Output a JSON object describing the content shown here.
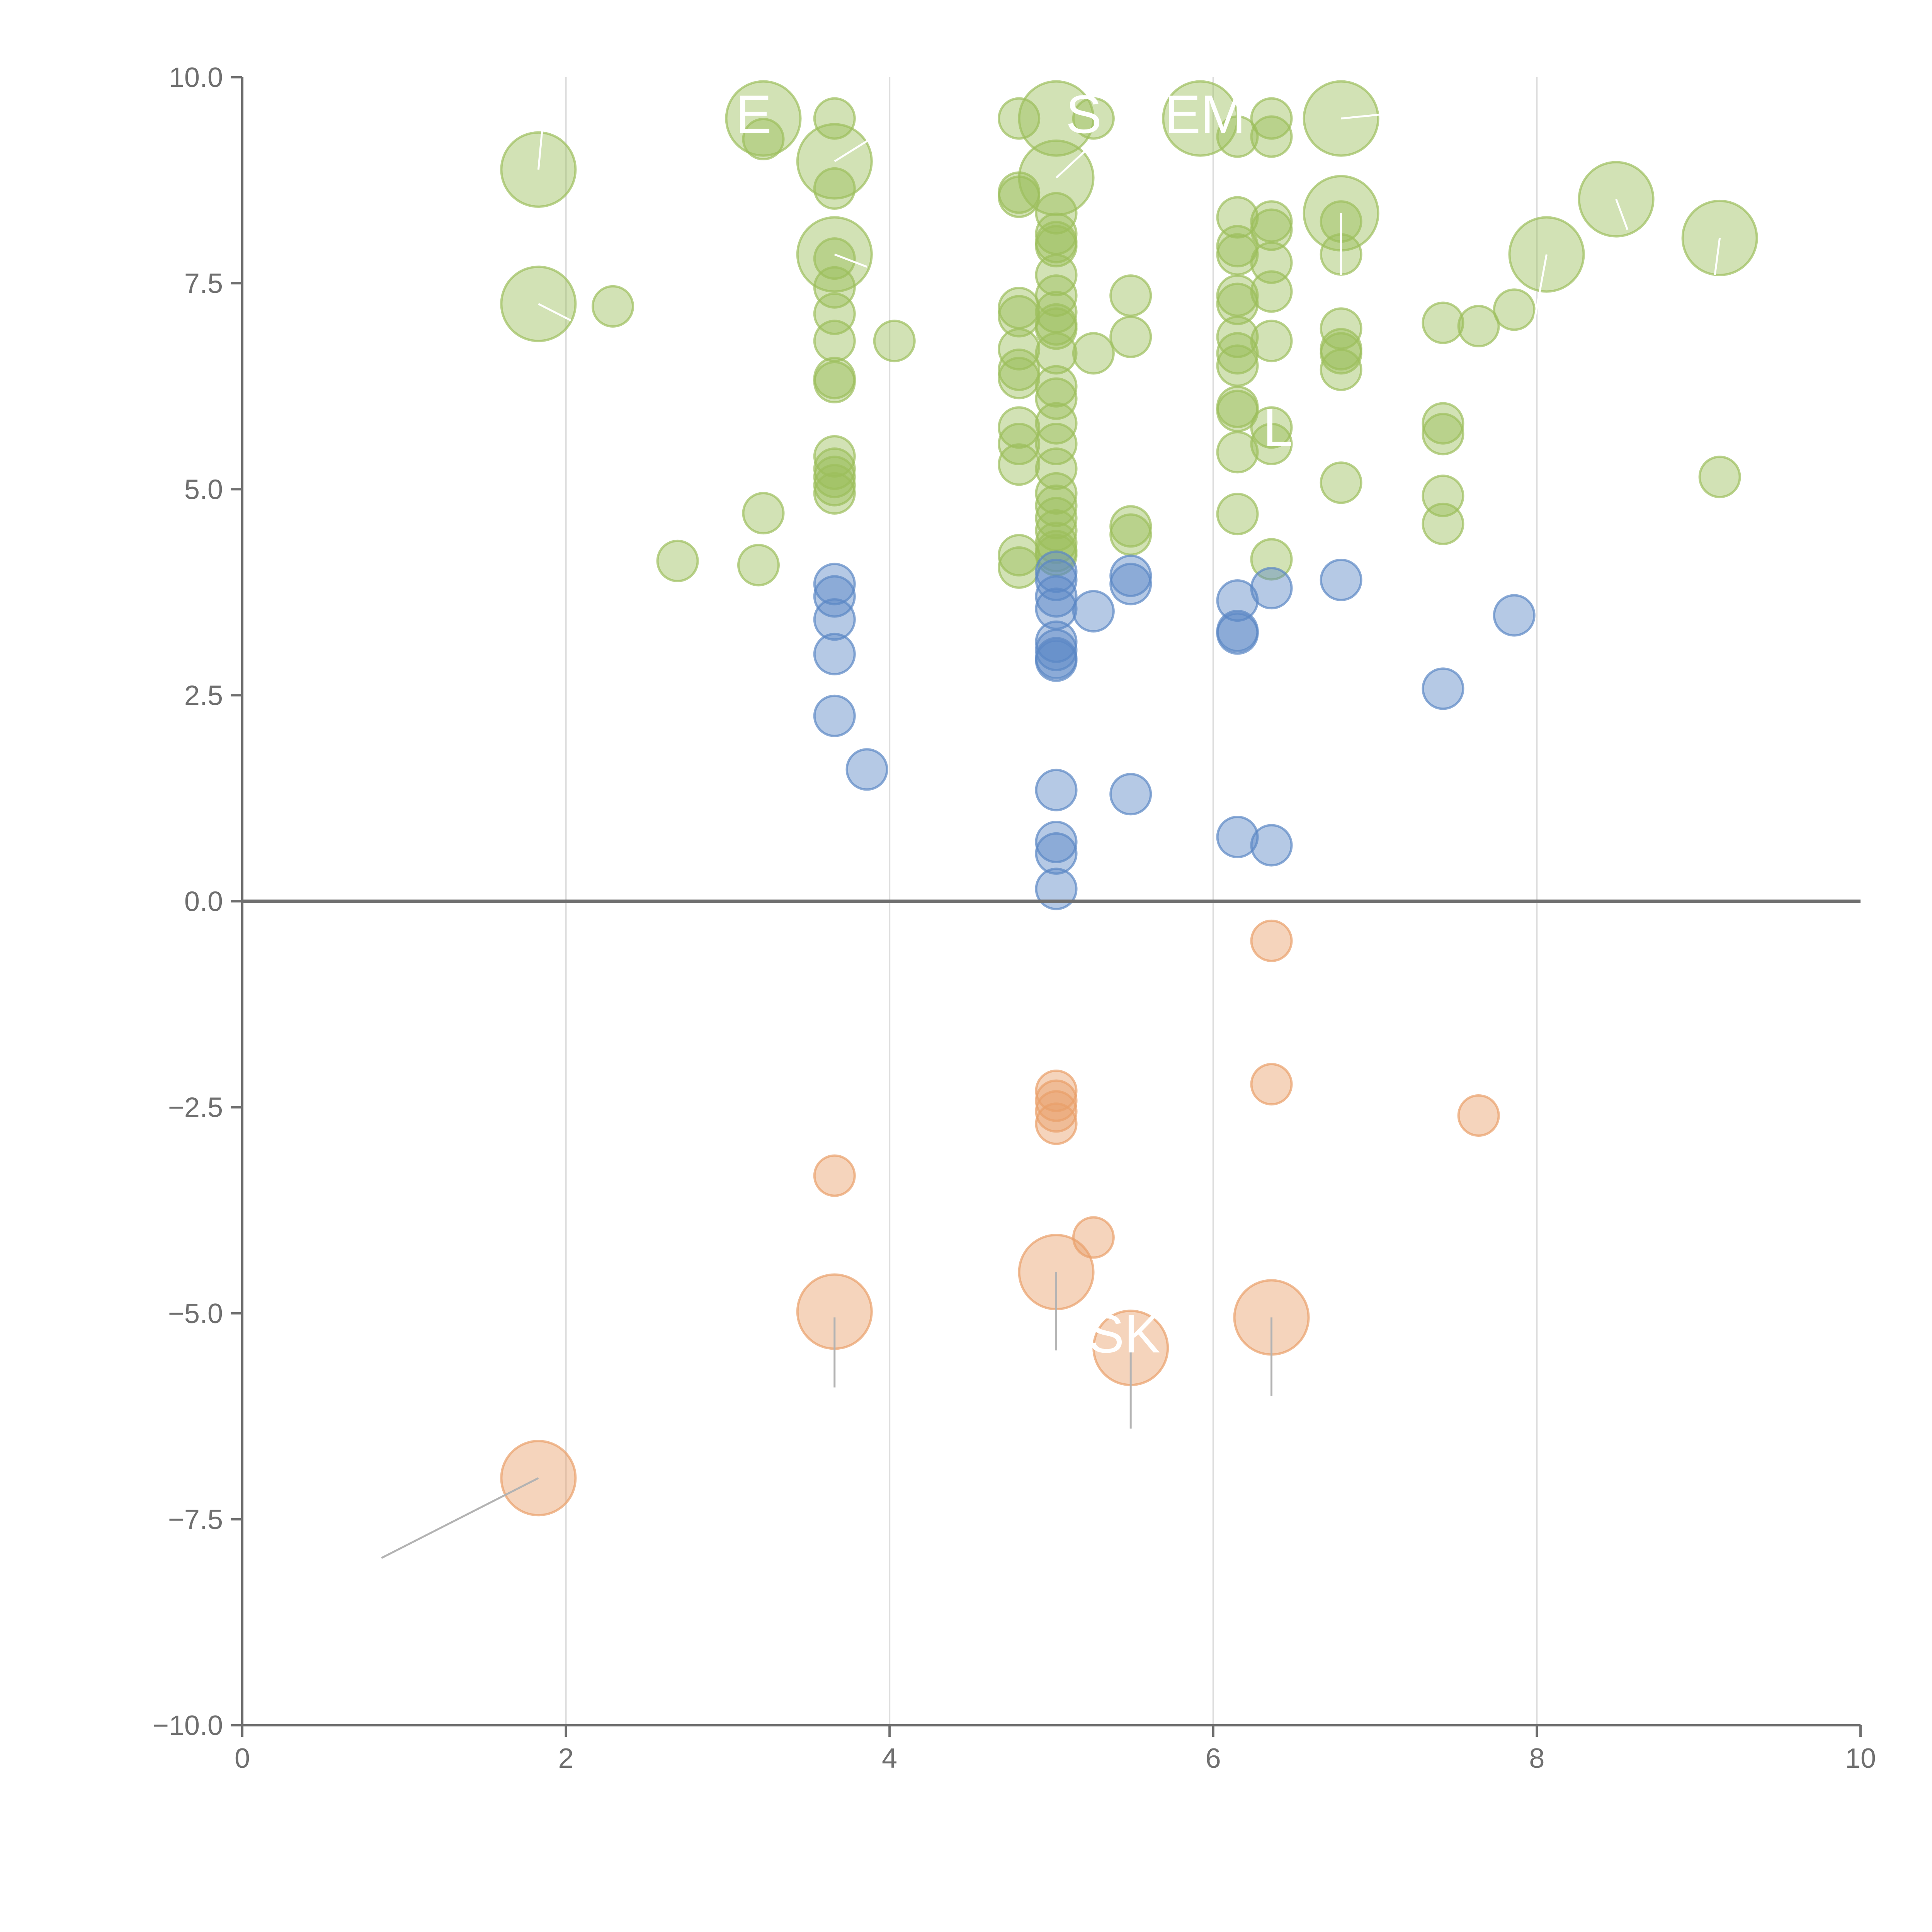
{
  "chart_data": {
    "type": "scatter",
    "subtype": "bubble",
    "title": "",
    "xlabel": "",
    "ylabel": "",
    "xlim": [
      0,
      10
    ],
    "ylim": [
      -10,
      10
    ],
    "x_ticks": [
      "0",
      "2",
      "4",
      "6",
      "8",
      "10"
    ],
    "x_tick_values": [
      0,
      2,
      4,
      6,
      8,
      10
    ],
    "y_ticks": [
      "10.0",
      "7.5",
      "5.0",
      "2.5",
      "0.0",
      "−2.5",
      "−5.0",
      "−7.5",
      "−10.0"
    ],
    "y_tick_values": [
      10,
      7.5,
      5,
      2.5,
      0,
      -2.5,
      -5,
      -7.5,
      -10
    ],
    "vertical_gridlines": [
      2,
      4,
      6,
      8
    ],
    "zero_line": 0,
    "colors": {
      "high": "#9cbf5c",
      "mid": "#5b87c5",
      "neg": "#e9a06a",
      "axis": "#6f6f6f",
      "grid": "#dddddd",
      "leader": "#b3b3b3"
    },
    "series": [
      {
        "name": "high",
        "points": [
          [
            1.83,
            8.88,
            2
          ],
          [
            1.83,
            7.25,
            2
          ],
          [
            2.29,
            7.22,
            1
          ],
          [
            2.69,
            4.13,
            1
          ],
          [
            3.19,
            4.08,
            1
          ],
          [
            3.22,
            4.71,
            1
          ],
          [
            3.22,
            9.25,
            1
          ],
          [
            3.22,
            9.5,
            2
          ],
          [
            3.66,
            9.5,
            1
          ],
          [
            3.66,
            8.98,
            2
          ],
          [
            3.66,
            8.65,
            1
          ],
          [
            3.66,
            7.85,
            2
          ],
          [
            3.66,
            7.8,
            1
          ],
          [
            3.66,
            7.45,
            1
          ],
          [
            3.66,
            7.13,
            1
          ],
          [
            3.66,
            6.8,
            1
          ],
          [
            3.66,
            6.35,
            1
          ],
          [
            3.66,
            6.3,
            1
          ],
          [
            3.66,
            5.4,
            1
          ],
          [
            3.66,
            5.25,
            1
          ],
          [
            3.66,
            5.15,
            1
          ],
          [
            3.66,
            5.05,
            1
          ],
          [
            3.66,
            4.95,
            1
          ],
          [
            4.03,
            6.8,
            1
          ],
          [
            4.8,
            9.5,
            1
          ],
          [
            4.8,
            8.6,
            1
          ],
          [
            4.8,
            8.55,
            1
          ],
          [
            4.8,
            7.2,
            1
          ],
          [
            4.8,
            7.1,
            1
          ],
          [
            4.8,
            6.7,
            1
          ],
          [
            4.8,
            6.45,
            1
          ],
          [
            4.8,
            6.35,
            1
          ],
          [
            4.8,
            5.75,
            1
          ],
          [
            4.8,
            5.55,
            1
          ],
          [
            4.8,
            5.3,
            1
          ],
          [
            4.8,
            4.2,
            1
          ],
          [
            4.8,
            4.05,
            1
          ],
          [
            5.03,
            9.5,
            2
          ],
          [
            5.03,
            8.78,
            2
          ],
          [
            5.03,
            8.35,
            1
          ],
          [
            5.03,
            8.1,
            1
          ],
          [
            5.03,
            8.0,
            1
          ],
          [
            5.03,
            7.95,
            1
          ],
          [
            5.03,
            7.6,
            1
          ],
          [
            5.03,
            7.35,
            1
          ],
          [
            5.03,
            7.15,
            1
          ],
          [
            5.03,
            7.0,
            1
          ],
          [
            5.03,
            6.95,
            1
          ],
          [
            5.03,
            6.65,
            1
          ],
          [
            5.03,
            6.25,
            1
          ],
          [
            5.03,
            6.1,
            1
          ],
          [
            5.03,
            5.8,
            1
          ],
          [
            5.03,
            5.55,
            1
          ],
          [
            5.03,
            5.25,
            1
          ],
          [
            5.03,
            4.95,
            1
          ],
          [
            5.03,
            4.8,
            1
          ],
          [
            5.03,
            4.65,
            1
          ],
          [
            5.03,
            4.5,
            1
          ],
          [
            5.03,
            4.35,
            1
          ],
          [
            5.03,
            4.25,
            1
          ],
          [
            5.03,
            4.2,
            1
          ],
          [
            5.26,
            9.5,
            1
          ],
          [
            5.26,
            6.65,
            1
          ],
          [
            5.49,
            7.35,
            1
          ],
          [
            5.49,
            6.85,
            1
          ],
          [
            5.49,
            4.55,
            1
          ],
          [
            5.49,
            4.45,
            1
          ],
          [
            5.92,
            9.5,
            2
          ],
          [
            6.15,
            9.28,
            1
          ],
          [
            6.15,
            8.3,
            1
          ],
          [
            6.15,
            7.95,
            1
          ],
          [
            6.15,
            7.85,
            1
          ],
          [
            6.15,
            7.35,
            1
          ],
          [
            6.15,
            7.25,
            1
          ],
          [
            6.15,
            6.85,
            1
          ],
          [
            6.15,
            6.65,
            1
          ],
          [
            6.15,
            6.5,
            1
          ],
          [
            6.15,
            6.0,
            1
          ],
          [
            6.15,
            5.95,
            1
          ],
          [
            6.15,
            5.45,
            1
          ],
          [
            6.15,
            4.7,
            1
          ],
          [
            6.36,
            9.5,
            1
          ],
          [
            6.36,
            9.28,
            1
          ],
          [
            6.36,
            8.25,
            1
          ],
          [
            6.36,
            8.15,
            1
          ],
          [
            6.36,
            7.75,
            1
          ],
          [
            6.36,
            7.4,
            1
          ],
          [
            6.36,
            6.8,
            1
          ],
          [
            6.36,
            5.75,
            1
          ],
          [
            6.36,
            5.55,
            1
          ],
          [
            6.36,
            4.15,
            1
          ],
          [
            6.79,
            9.5,
            2
          ],
          [
            6.79,
            8.35,
            2
          ],
          [
            6.79,
            8.25,
            1
          ],
          [
            6.79,
            7.85,
            1
          ],
          [
            6.79,
            6.95,
            1
          ],
          [
            6.79,
            6.7,
            1
          ],
          [
            6.79,
            6.65,
            1
          ],
          [
            6.79,
            6.45,
            1
          ],
          [
            6.79,
            5.08,
            1
          ],
          [
            7.42,
            7.02,
            1
          ],
          [
            7.42,
            5.8,
            1
          ],
          [
            7.42,
            5.67,
            1
          ],
          [
            7.42,
            4.92,
            1
          ],
          [
            7.42,
            4.58,
            1
          ],
          [
            7.64,
            6.98,
            1
          ],
          [
            7.86,
            7.18,
            1
          ],
          [
            8.06,
            7.85,
            2
          ],
          [
            8.49,
            8.52,
            2
          ],
          [
            9.13,
            8.05,
            2
          ],
          [
            9.13,
            5.15,
            1
          ]
        ]
      },
      {
        "name": "mid",
        "points": [
          [
            3.66,
            3.85,
            1
          ],
          [
            3.66,
            3.7,
            1
          ],
          [
            3.66,
            3.42,
            1
          ],
          [
            3.66,
            3.0,
            1
          ],
          [
            3.66,
            2.25,
            1
          ],
          [
            3.86,
            1.6,
            1
          ],
          [
            5.03,
            4.0,
            1
          ],
          [
            5.03,
            3.9,
            1
          ],
          [
            5.03,
            3.7,
            1
          ],
          [
            5.03,
            3.55,
            1
          ],
          [
            5.03,
            3.15,
            1
          ],
          [
            5.03,
            3.05,
            1
          ],
          [
            5.03,
            2.95,
            1
          ],
          [
            5.03,
            2.92,
            1
          ],
          [
            5.03,
            1.35,
            1
          ],
          [
            5.03,
            0.72,
            1
          ],
          [
            5.03,
            0.58,
            1
          ],
          [
            5.03,
            0.15,
            1
          ],
          [
            5.26,
            3.52,
            1
          ],
          [
            5.49,
            3.95,
            1
          ],
          [
            5.49,
            3.85,
            1
          ],
          [
            5.49,
            1.3,
            1
          ],
          [
            6.15,
            3.65,
            1
          ],
          [
            6.15,
            3.28,
            1
          ],
          [
            6.15,
            3.25,
            1
          ],
          [
            6.15,
            0.78,
            1
          ],
          [
            6.36,
            3.8,
            1
          ],
          [
            6.36,
            0.68,
            1
          ],
          [
            6.79,
            3.9,
            1
          ],
          [
            7.42,
            2.58,
            1
          ],
          [
            7.86,
            3.47,
            1
          ]
        ]
      },
      {
        "name": "neg",
        "points": [
          [
            3.66,
            -3.33,
            1
          ],
          [
            3.66,
            -4.98,
            2
          ],
          [
            5.03,
            -2.3,
            1
          ],
          [
            5.03,
            -2.42,
            1
          ],
          [
            5.03,
            -2.55,
            1
          ],
          [
            5.03,
            -2.7,
            1
          ],
          [
            5.03,
            -4.5,
            2
          ],
          [
            5.26,
            -4.08,
            1
          ],
          [
            5.49,
            -5.42,
            2
          ],
          [
            6.36,
            -0.48,
            1
          ],
          [
            6.36,
            -2.22,
            1
          ],
          [
            6.36,
            -5.05,
            2
          ],
          [
            7.64,
            -2.6,
            1
          ],
          [
            1.83,
            -7.0,
            2
          ]
        ]
      }
    ],
    "labels": [
      {
        "text": "E",
        "x": 3.16,
        "y": 9.55,
        "anchor": "middle"
      },
      {
        "text": "S",
        "x": 5.2,
        "y": 9.55,
        "anchor": "middle"
      },
      {
        "text": "EM",
        "x": 5.95,
        "y": 9.55,
        "anchor": "middle"
      },
      {
        "text": "L",
        "x": 6.4,
        "y": 5.75,
        "anchor": "middle"
      },
      {
        "text": "SK",
        "x": 5.45,
        "y": -5.25,
        "anchor": "middle"
      }
    ],
    "leader_lines": [
      {
        "series": "neg",
        "from": [
          1.83,
          -7.0
        ],
        "to": [
          0.86,
          -7.97
        ]
      },
      {
        "series": "neg",
        "from": [
          3.66,
          -5.05
        ],
        "to": [
          3.66,
          -5.9
        ]
      },
      {
        "series": "neg",
        "from": [
          5.03,
          -4.5
        ],
        "to": [
          5.03,
          -5.45
        ]
      },
      {
        "series": "neg",
        "from": [
          5.49,
          -5.45
        ],
        "to": [
          5.49,
          -6.4
        ]
      },
      {
        "series": "neg",
        "from": [
          6.36,
          -5.05
        ],
        "to": [
          6.36,
          -6.0
        ]
      },
      {
        "series": "high",
        "from": [
          1.83,
          8.88
        ],
        "to": [
          1.86,
          9.5
        ]
      },
      {
        "series": "high",
        "from": [
          1.83,
          7.25
        ],
        "to": [
          2.03,
          7.05
        ]
      },
      {
        "series": "high",
        "from": [
          3.66,
          8.98
        ],
        "to": [
          3.88,
          9.25
        ]
      },
      {
        "series": "high",
        "from": [
          5.03,
          8.78
        ],
        "to": [
          5.26,
          9.2
        ]
      },
      {
        "series": "high",
        "from": [
          6.79,
          9.5
        ],
        "to": [
          7.2,
          9.58
        ]
      },
      {
        "series": "high",
        "from": [
          6.79,
          8.35
        ],
        "to": [
          6.79,
          7.6
        ]
      },
      {
        "series": "high",
        "from": [
          8.49,
          8.52
        ],
        "to": [
          8.56,
          8.15
        ]
      },
      {
        "series": "high",
        "from": [
          8.06,
          7.85
        ],
        "to": [
          7.98,
          7.0
        ]
      },
      {
        "series": "high",
        "from": [
          9.13,
          8.05
        ],
        "to": [
          9.1,
          7.6
        ]
      },
      {
        "series": "high",
        "from": [
          3.66,
          7.85
        ],
        "to": [
          3.86,
          7.7
        ]
      }
    ]
  }
}
